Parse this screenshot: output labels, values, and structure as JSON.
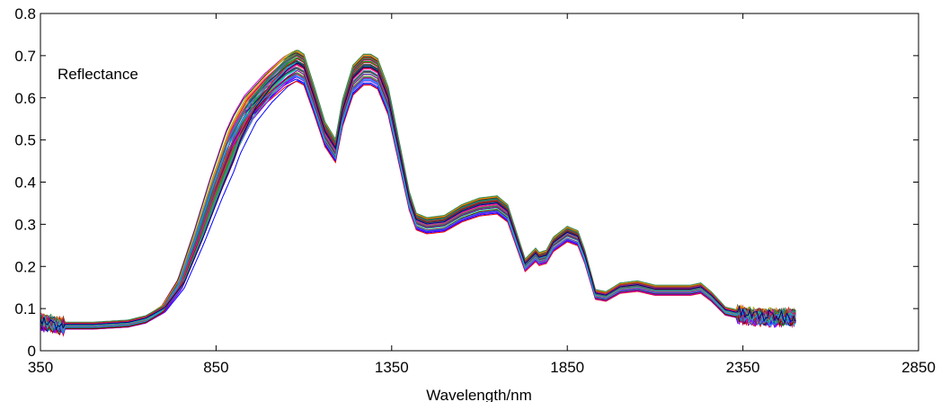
{
  "chart_data": {
    "type": "line",
    "title": "",
    "xlabel": "Wavelength/nm",
    "ylabel": "",
    "annotation": "Reflectance",
    "xlim": [
      350,
      2850
    ],
    "ylim": [
      0,
      0.8
    ],
    "xticks": [
      "350",
      "850",
      "1350",
      "1850",
      "2350",
      "2850"
    ],
    "yticks": [
      "0",
      "0.1",
      "0.2",
      "0.3",
      "0.4",
      "0.5",
      "0.6",
      "0.7",
      "0.8"
    ],
    "grid": false,
    "legend": "none",
    "spectra": {
      "wavelength": [
        350,
        400,
        500,
        600,
        650,
        700,
        750,
        800,
        850,
        900,
        950,
        1000,
        1050,
        1080,
        1100,
        1130,
        1160,
        1190,
        1210,
        1240,
        1270,
        1290,
        1310,
        1340,
        1370,
        1400,
        1420,
        1450,
        1500,
        1550,
        1600,
        1650,
        1680,
        1700,
        1730,
        1760,
        1770,
        1790,
        1810,
        1850,
        1880,
        1900,
        1930,
        1960,
        2000,
        2050,
        2100,
        2150,
        2200,
        2230,
        2260,
        2300,
        2350,
        2400,
        2450,
        2500
      ],
      "mean_reflectance": [
        0.07,
        0.06,
        0.06,
        0.065,
        0.075,
        0.1,
        0.16,
        0.27,
        0.39,
        0.5,
        0.58,
        0.63,
        0.67,
        0.685,
        0.675,
        0.6,
        0.52,
        0.48,
        0.57,
        0.65,
        0.675,
        0.675,
        0.665,
        0.6,
        0.48,
        0.36,
        0.31,
        0.3,
        0.305,
        0.33,
        0.345,
        0.35,
        0.33,
        0.28,
        0.205,
        0.23,
        0.22,
        0.225,
        0.255,
        0.28,
        0.27,
        0.225,
        0.135,
        0.13,
        0.15,
        0.155,
        0.145,
        0.145,
        0.145,
        0.15,
        0.13,
        0.095,
        0.085,
        0.08,
        0.08,
        0.08
      ]
    },
    "series_colors": [
      "#0000ff",
      "#00aa00",
      "#ff0000",
      "#00cccc",
      "#cc00cc",
      "#aaaa00",
      "#333333",
      "#ff8800",
      "#7f00ff",
      "#008080",
      "#800000",
      "#4682b4",
      "#2e8b57",
      "#ff1493",
      "#556b2f",
      "#8b008b",
      "#1e90ff",
      "#b22222",
      "#20b2aa",
      "#000080"
    ]
  }
}
